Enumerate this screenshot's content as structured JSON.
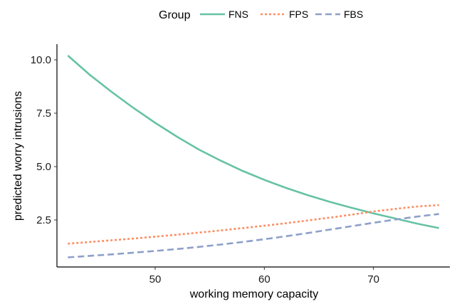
{
  "chart_data": {
    "type": "line",
    "title": "",
    "xlabel": "working memory capacity",
    "ylabel": "predicted worry intrusions",
    "xlim": [
      41,
      77
    ],
    "ylim": [
      0.3,
      10.6
    ],
    "xticks": [
      50,
      60,
      70
    ],
    "yticks": [
      2.5,
      5.0,
      7.5,
      10.0
    ],
    "xtick_labels": [
      "50",
      "60",
      "70"
    ],
    "ytick_labels": [
      "2.5",
      "5.0",
      "7.5",
      "10.0"
    ],
    "grid": false,
    "legend": {
      "title": "Group",
      "position": "top"
    },
    "x": [
      42,
      44,
      46,
      48,
      50,
      52,
      54,
      56,
      58,
      60,
      62,
      64,
      66,
      68,
      70,
      72,
      74,
      76
    ],
    "series": [
      {
        "name": "FNS",
        "color": "#66c2a5",
        "dash": "solid",
        "values": [
          10.2,
          9.3,
          8.5,
          7.75,
          7.05,
          6.4,
          5.8,
          5.28,
          4.8,
          4.38,
          4.0,
          3.66,
          3.35,
          3.07,
          2.81,
          2.57,
          2.33,
          2.12
        ]
      },
      {
        "name": "FPS",
        "color": "#fc8d62",
        "dash": "dotted",
        "values": [
          1.39,
          1.47,
          1.55,
          1.63,
          1.72,
          1.81,
          1.91,
          2.01,
          2.12,
          2.23,
          2.35,
          2.48,
          2.61,
          2.75,
          2.9,
          3.02,
          3.13,
          3.2
        ]
      },
      {
        "name": "FBS",
        "color": "#8da0cb",
        "dash": "dashed",
        "values": [
          0.75,
          0.82,
          0.89,
          0.97,
          1.05,
          1.14,
          1.24,
          1.35,
          1.47,
          1.6,
          1.74,
          1.89,
          2.05,
          2.21,
          2.37,
          2.52,
          2.66,
          2.78
        ]
      }
    ]
  }
}
